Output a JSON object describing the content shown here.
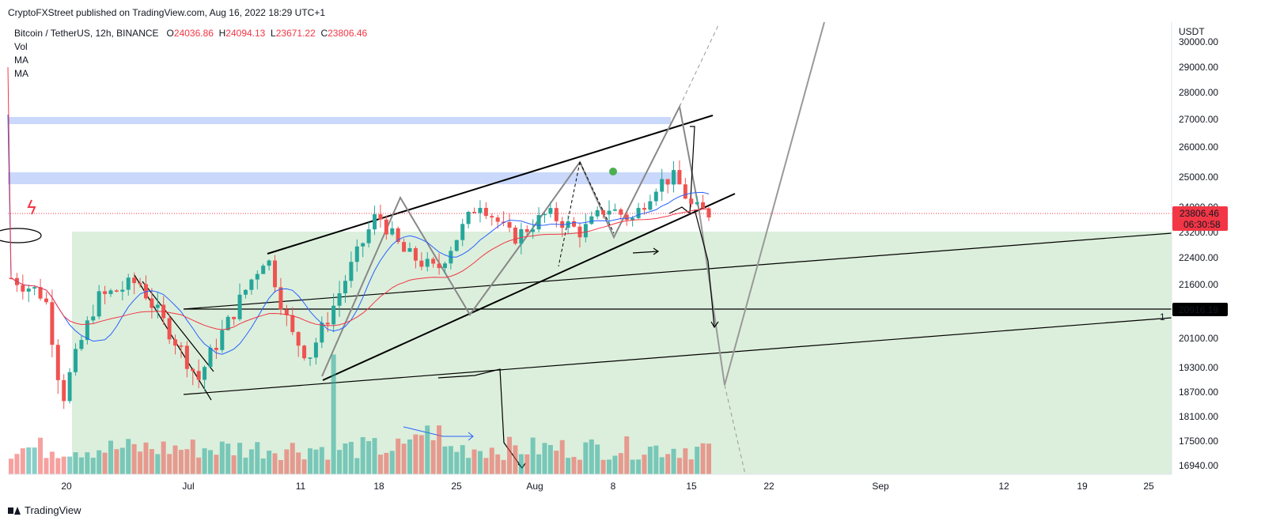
{
  "publisher_line": "CryptoFXStreet published on TradingView.com, Aug 16, 2022 18:29 UTC+1",
  "brand": "TradingView",
  "legend": {
    "symbol": "Bitcoin / TetherUS, 12h, BINANCE",
    "o_label": "O",
    "o_value": "24036.86",
    "h_label": "H",
    "h_value": "24094.13",
    "l_label": "L",
    "l_value": "23671.22",
    "c_label": "C",
    "c_value": "23806.46",
    "indicators": [
      "Vol",
      "MA",
      "MA"
    ]
  },
  "colors": {
    "up": "#26a69a",
    "down": "#ef5350",
    "ma_fast": "#2962ff",
    "ma_slow": "#f23645",
    "zone_green": "#dcefdc",
    "zone_blue": "#c9d8fb"
  },
  "chart_data": {
    "type": "candlestick",
    "xlabel": "",
    "ylabel": "USDT",
    "y_ticks": [
      "30000.00",
      "29000.00",
      "28000.00",
      "27000.00",
      "26000.00",
      "25000.00",
      "24000.00",
      "23200.00",
      "22400.00",
      "21600.00",
      "20900.00",
      "20100.00",
      "19300.00",
      "18700.00",
      "18100.00",
      "17500.00",
      "16940.00"
    ],
    "x_ticks": [
      "20",
      "Jul",
      "11",
      "18",
      "25",
      "Aug",
      "8",
      "15",
      "22",
      "Sep",
      "12",
      "19",
      "25"
    ],
    "last_price": "23806.46",
    "countdown": "06:30:58",
    "level_label": "20916.19",
    "tag_1": "1",
    "candles_ohlc_approx": [
      [
        21500,
        22500,
        20400,
        22000
      ],
      [
        22000,
        22900,
        21100,
        21400
      ],
      [
        21300,
        21700,
        20100,
        20500
      ],
      [
        20500,
        20900,
        17600,
        18200
      ],
      [
        18200,
        21000,
        17600,
        20800
      ],
      [
        20800,
        21600,
        20200,
        21300
      ],
      [
        21300,
        21800,
        20700,
        20900
      ],
      [
        20900,
        21600,
        20500,
        21300
      ],
      [
        21200,
        22000,
        20900,
        21700
      ],
      [
        21700,
        22200,
        21300,
        21500
      ]
    ],
    "series": [
      {
        "name": "MA",
        "color": "#2962ff"
      },
      {
        "name": "MA",
        "color": "#f23645"
      },
      {
        "name": "Vol"
      }
    ]
  }
}
